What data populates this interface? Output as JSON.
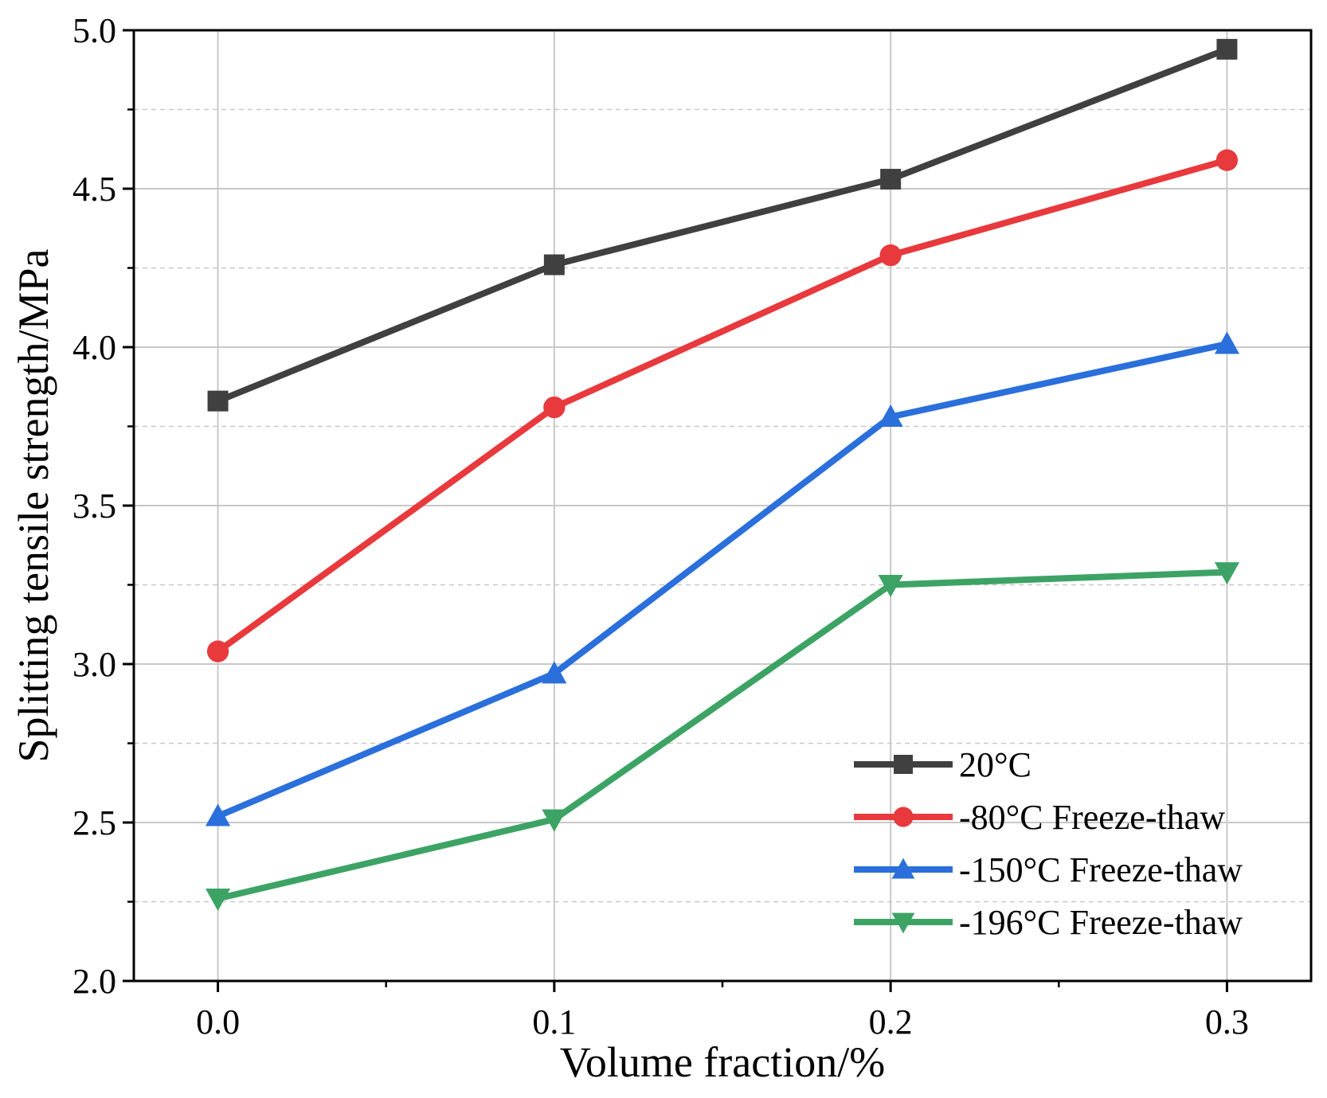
{
  "chart_data": {
    "type": "line",
    "title": "",
    "xlabel": "Volume fraction/%",
    "ylabel": "Splitting tensile strength/MPa",
    "x": [
      0.0,
      0.1,
      0.2,
      0.3
    ],
    "x_tick_labels": [
      "0.0",
      "0.1",
      "0.2",
      "0.3"
    ],
    "xlim": [
      -0.025,
      0.325
    ],
    "ylim": [
      2.0,
      5.0
    ],
    "y_ticks": [
      2.0,
      2.5,
      3.0,
      3.5,
      4.0,
      4.5,
      5.0
    ],
    "y_tick_labels": [
      "2.0",
      "2.5",
      "3.0",
      "3.5",
      "4.0",
      "4.5",
      "5.0"
    ],
    "grid": true,
    "legend_position": "bottom-right",
    "series": [
      {
        "name": "20°C",
        "values": [
          3.83,
          4.26,
          4.53,
          4.94
        ],
        "color": "#404040",
        "marker": "square"
      },
      {
        "name": "-80°C Freeze-thaw",
        "values": [
          3.04,
          3.81,
          4.29,
          4.59
        ],
        "color": "#e8393d",
        "marker": "circle"
      },
      {
        "name": "-150°C Freeze-thaw",
        "values": [
          2.52,
          2.97,
          3.78,
          4.01
        ],
        "color": "#2a6fdb",
        "marker": "triangle-up"
      },
      {
        "name": "-196°C Freeze-thaw",
        "values": [
          2.26,
          2.51,
          3.25,
          3.29
        ],
        "color": "#3da365",
        "marker": "triangle-down"
      }
    ]
  }
}
